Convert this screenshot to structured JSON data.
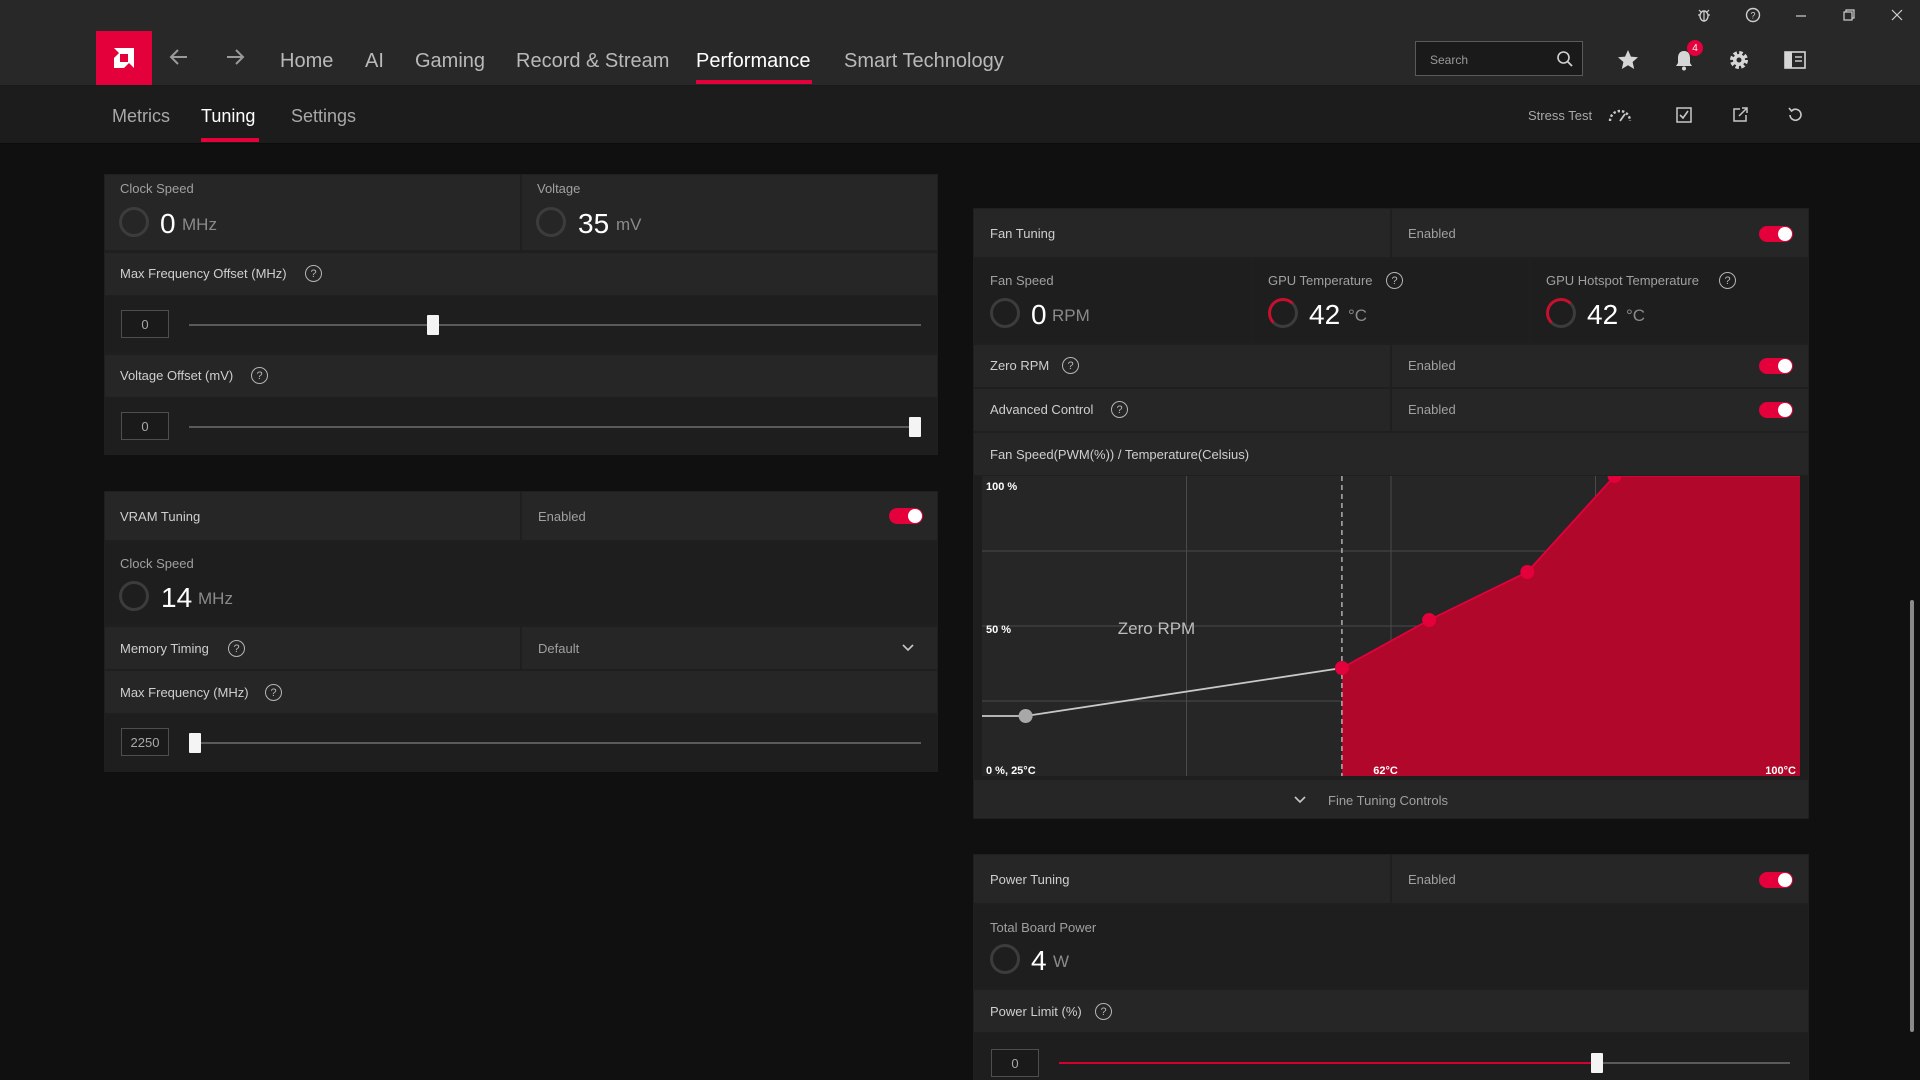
{
  "app": {
    "brand_color": "#e4003a",
    "titlebar_icons": [
      "bug-icon",
      "help-icon",
      "minimize-icon",
      "restore-icon",
      "close-icon"
    ],
    "nav": {
      "items": [
        {
          "label": "Home"
        },
        {
          "label": "AI"
        },
        {
          "label": "Gaming"
        },
        {
          "label": "Record & Stream"
        },
        {
          "label": "Performance",
          "active": true
        },
        {
          "label": "Smart Technology"
        }
      ]
    },
    "search": {
      "placeholder": "Search"
    },
    "notifications": {
      "count": "4"
    },
    "subnav": {
      "items": [
        {
          "label": "Metrics"
        },
        {
          "label": "Tuning",
          "active": true
        },
        {
          "label": "Settings"
        }
      ],
      "stress_test": "Stress Test"
    }
  },
  "gpu": {
    "clock_speed": {
      "label": "Clock Speed",
      "value": "0",
      "unit": "MHz"
    },
    "voltage": {
      "label": "Voltage",
      "value": "35",
      "unit": "mV"
    },
    "max_freq_offset": {
      "label": "Max Frequency Offset (MHz)",
      "value": "0",
      "slider_fraction": 0.33
    },
    "voltage_offset": {
      "label": "Voltage Offset (mV)",
      "value": "0",
      "slider_fraction": 1.0
    }
  },
  "vram": {
    "title": "VRAM Tuning",
    "status": "Enabled",
    "clock_speed": {
      "label": "Clock Speed",
      "value": "14",
      "unit": "MHz"
    },
    "memory_timing": {
      "label": "Memory Timing",
      "value": "Default"
    },
    "max_frequency": {
      "label": "Max Frequency (MHz)",
      "value": "2250",
      "slider_fraction": 0.0
    }
  },
  "fan": {
    "title": "Fan Tuning",
    "status": "Enabled",
    "fan_speed": {
      "label": "Fan Speed",
      "value": "0",
      "unit": "RPM"
    },
    "gpu_temp": {
      "label": "GPU Temperature",
      "value": "42",
      "unit": "°C"
    },
    "hotspot_temp": {
      "label": "GPU Hotspot Temperature",
      "value": "42",
      "unit": "°C"
    },
    "zero_rpm": {
      "label": "Zero RPM",
      "status": "Enabled"
    },
    "advanced_control": {
      "label": "Advanced Control",
      "status": "Enabled"
    },
    "fine_tuning": "Fine Tuning Controls"
  },
  "power": {
    "title": "Power Tuning",
    "status": "Enabled",
    "total_board_power": {
      "label": "Total Board Power",
      "value": "4",
      "unit": "W"
    },
    "power_limit": {
      "label": "Power Limit (%)",
      "value": "0",
      "slider_fraction": 0.74
    }
  },
  "chart_data": {
    "type": "line",
    "title": "Fan Speed(PWM(%)) / Temperature(Celsius)",
    "x_unit": "°C",
    "y_unit": "%",
    "xlim": [
      25,
      100
    ],
    "ylim": [
      0,
      100
    ],
    "y_tick_labels": [
      "100 %",
      "50 %",
      "0 %, 25°C"
    ],
    "x_tick_labels": [
      "62°C",
      "100°C"
    ],
    "zero_rpm_label": "Zero RPM",
    "zero_rpm_threshold_c": 58,
    "grid": true,
    "fill_color": "#b0072a",
    "line_color": "#e4003a",
    "points": [
      {
        "x": 25,
        "y": 20
      },
      {
        "x": 29,
        "y": 20
      },
      {
        "x": 58,
        "y": 36
      },
      {
        "x": 66,
        "y": 52
      },
      {
        "x": 75,
        "y": 68
      },
      {
        "x": 83,
        "y": 100
      },
      {
        "x": 100,
        "y": 100
      }
    ]
  }
}
